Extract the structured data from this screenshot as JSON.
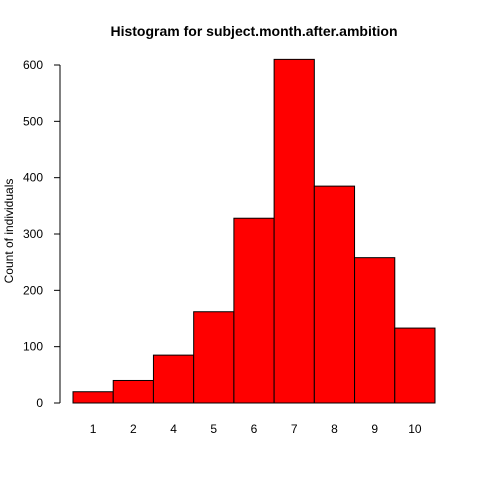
{
  "chart_data": {
    "type": "bar",
    "title": "Histogram for subject.month.after.ambition",
    "xlabel": "",
    "ylabel": "Count of individuals",
    "categories": [
      "1",
      "2",
      "4",
      "5",
      "6",
      "7",
      "8",
      "9",
      "10"
    ],
    "values": [
      20,
      40,
      85,
      162,
      328,
      610,
      385,
      258,
      133
    ],
    "ylim": [
      0,
      610
    ],
    "yticks": [
      0,
      100,
      200,
      300,
      400,
      500,
      600
    ],
    "bar_color": "#ff0000",
    "grid": false,
    "legend": "none"
  }
}
